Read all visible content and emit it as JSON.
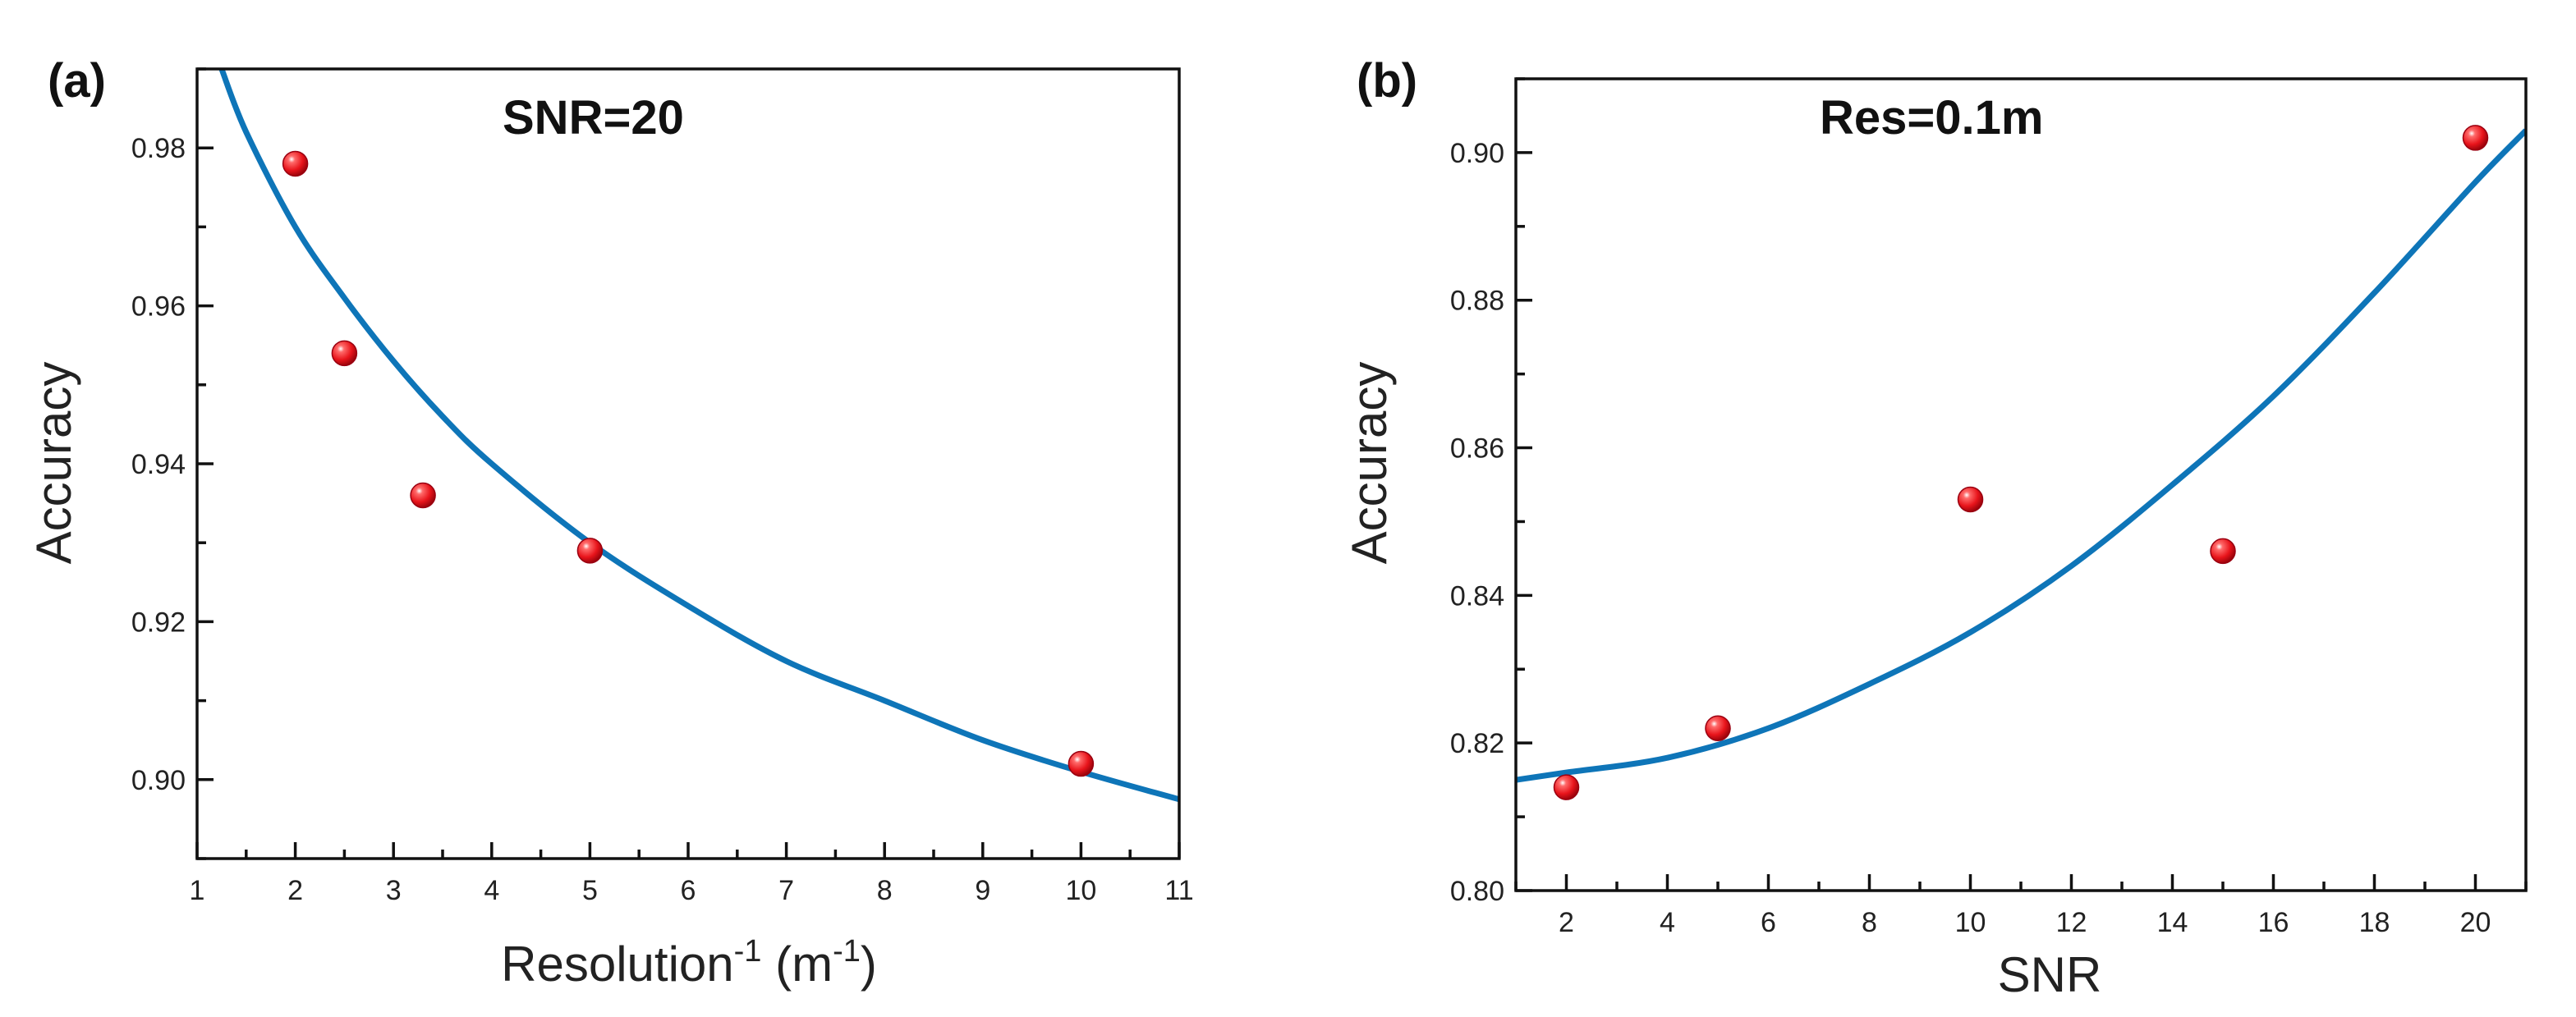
{
  "colors": {
    "fit": "#0e75b8",
    "point": "#e8141b",
    "axis": "#111111"
  },
  "chart_data": [
    {
      "type": "scatter",
      "panel_label": "(a)",
      "annotation": "SNR=20",
      "xlabel": "Resolution",
      "xlabel_sup": "-1",
      "xlabel_unit_open": " (m",
      "xlabel_unit_sup": "-1",
      "xlabel_unit_close": ")",
      "ylabel": "Accuracy",
      "xlim": [
        1,
        11
      ],
      "ylim": [
        0.89,
        0.99
      ],
      "x_ticks": [
        1,
        2,
        3,
        4,
        5,
        6,
        7,
        8,
        9,
        10,
        11
      ],
      "y_ticks": [
        0.9,
        0.92,
        0.94,
        0.96,
        0.98
      ],
      "x_tick_labels": [
        "1",
        "2",
        "3",
        "4",
        "5",
        "6",
        "7",
        "8",
        "9",
        "10",
        "11"
      ],
      "y_tick_labels": [
        "0.90",
        "0.92",
        "0.94",
        "0.96",
        "0.98"
      ],
      "points": {
        "x": [
          2,
          2.5,
          3.3,
          5,
          10
        ],
        "y": [
          0.978,
          0.954,
          0.936,
          0.929,
          0.902
        ]
      },
      "fit": {
        "name": "fit",
        "x": [
          1.25,
          1.5,
          2,
          2.5,
          3,
          3.5,
          4,
          5,
          6,
          7,
          8,
          9,
          10,
          11
        ],
        "y": [
          0.99,
          0.982,
          0.97,
          0.961,
          0.953,
          0.946,
          0.94,
          0.93,
          0.922,
          0.915,
          0.91,
          0.905,
          0.901,
          0.8975
        ]
      }
    },
    {
      "type": "scatter",
      "panel_label": "(b)",
      "annotation": "Res=0.1m",
      "xlabel": "SNR",
      "ylabel": "Accuracy",
      "xlim": [
        1,
        21
      ],
      "ylim": [
        0.8,
        0.91
      ],
      "x_ticks": [
        2,
        4,
        6,
        8,
        10,
        12,
        14,
        16,
        18,
        20
      ],
      "y_ticks": [
        0.8,
        0.82,
        0.84,
        0.86,
        0.88,
        0.9
      ],
      "x_tick_labels": [
        "2",
        "4",
        "6",
        "8",
        "10",
        "12",
        "14",
        "16",
        "18",
        "20"
      ],
      "y_tick_labels": [
        "0.80",
        "0.82",
        "0.84",
        "0.86",
        "0.88",
        "0.90"
      ],
      "points": {
        "x": [
          2,
          5,
          10,
          15,
          20
        ],
        "y": [
          0.814,
          0.822,
          0.853,
          0.846,
          0.902
        ]
      },
      "fit": {
        "name": "fit",
        "x": [
          1,
          2,
          4,
          6,
          8,
          10,
          12,
          14,
          16,
          18,
          20,
          21
        ],
        "y": [
          0.815,
          0.816,
          0.818,
          0.822,
          0.828,
          0.835,
          0.844,
          0.855,
          0.867,
          0.881,
          0.896,
          0.903
        ]
      }
    }
  ]
}
